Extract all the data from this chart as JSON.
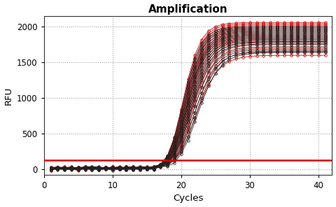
{
  "title": "Amplification",
  "xlabel": "Cycles",
  "ylabel": "RFU",
  "xlim": [
    1,
    42
  ],
  "ylim": [
    -80,
    2150
  ],
  "xticks": [
    0,
    10,
    20,
    30,
    40
  ],
  "yticks": [
    0,
    500,
    1000,
    1500,
    2000
  ],
  "threshold_y": 130,
  "threshold_color": "#dd0000",
  "num_cycles": 41,
  "sigmoid_curves": [
    {
      "L": 2060,
      "k": 0.75,
      "x0": 20.0,
      "color": "#cc0000"
    },
    {
      "L": 2040,
      "k": 0.74,
      "x0": 20.1,
      "color": "#cc0000"
    },
    {
      "L": 2020,
      "k": 0.73,
      "x0": 20.2,
      "color": "#cc0000"
    },
    {
      "L": 2000,
      "k": 0.72,
      "x0": 20.3,
      "color": "#cc0000"
    },
    {
      "L": 1980,
      "k": 0.71,
      "x0": 20.3,
      "color": "#cc0000"
    },
    {
      "L": 1960,
      "k": 0.7,
      "x0": 20.4,
      "color": "#cc0000"
    },
    {
      "L": 1940,
      "k": 0.69,
      "x0": 20.5,
      "color": "#cc0000"
    },
    {
      "L": 1920,
      "k": 0.68,
      "x0": 20.5,
      "color": "#cc0000"
    },
    {
      "L": 1900,
      "k": 0.67,
      "x0": 20.6,
      "color": "#cc0000"
    },
    {
      "L": 1880,
      "k": 0.66,
      "x0": 20.6,
      "color": "#cc0000"
    },
    {
      "L": 1860,
      "k": 0.65,
      "x0": 20.7,
      "color": "#cc0000"
    },
    {
      "L": 1840,
      "k": 0.64,
      "x0": 20.8,
      "color": "#cc0000"
    },
    {
      "L": 1820,
      "k": 0.63,
      "x0": 20.9,
      "color": "#cc0000"
    },
    {
      "L": 1790,
      "k": 0.62,
      "x0": 21.0,
      "color": "#cc0000"
    },
    {
      "L": 1750,
      "k": 0.61,
      "x0": 21.1,
      "color": "#cc0000"
    },
    {
      "L": 1700,
      "k": 0.6,
      "x0": 21.2,
      "color": "#cc0000"
    },
    {
      "L": 1650,
      "k": 0.59,
      "x0": 21.4,
      "color": "#cc0000"
    },
    {
      "L": 1600,
      "k": 0.58,
      "x0": 21.6,
      "color": "#cc0000"
    },
    {
      "L": 2000,
      "k": 0.75,
      "x0": 20.0,
      "color": "#222222"
    },
    {
      "L": 1980,
      "k": 0.74,
      "x0": 20.1,
      "color": "#222222"
    },
    {
      "L": 1960,
      "k": 0.73,
      "x0": 20.2,
      "color": "#222222"
    },
    {
      "L": 1940,
      "k": 0.72,
      "x0": 20.3,
      "color": "#222222"
    },
    {
      "L": 1920,
      "k": 0.71,
      "x0": 20.4,
      "color": "#222222"
    },
    {
      "L": 1900,
      "k": 0.7,
      "x0": 20.5,
      "color": "#222222"
    },
    {
      "L": 1880,
      "k": 0.69,
      "x0": 20.5,
      "color": "#222222"
    },
    {
      "L": 1860,
      "k": 0.68,
      "x0": 20.6,
      "color": "#222222"
    },
    {
      "L": 1840,
      "k": 0.67,
      "x0": 20.7,
      "color": "#222222"
    },
    {
      "L": 1820,
      "k": 0.66,
      "x0": 20.8,
      "color": "#222222"
    },
    {
      "L": 1800,
      "k": 0.65,
      "x0": 20.9,
      "color": "#222222"
    },
    {
      "L": 1780,
      "k": 0.64,
      "x0": 21.0,
      "color": "#222222"
    },
    {
      "L": 1760,
      "k": 0.63,
      "x0": 21.1,
      "color": "#222222"
    },
    {
      "L": 1720,
      "k": 0.62,
      "x0": 21.3,
      "color": "#222222"
    },
    {
      "L": 1680,
      "k": 0.61,
      "x0": 21.5,
      "color": "#222222"
    },
    {
      "L": 1660,
      "k": 0.6,
      "x0": 21.7,
      "color": "#222222"
    },
    {
      "L": 1640,
      "k": 0.59,
      "x0": 21.9,
      "color": "#222222"
    }
  ],
  "background_color": "#ffffff",
  "grid_color": "#999999",
  "noise_baseline": 10,
  "noise_std": 12
}
